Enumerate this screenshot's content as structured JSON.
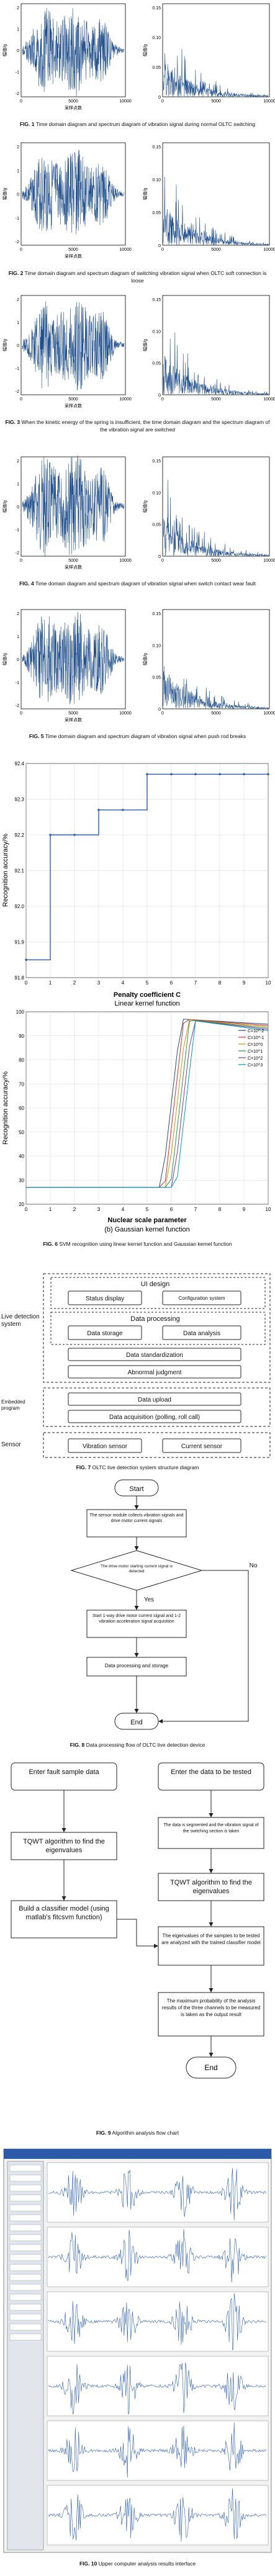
{
  "fig1": {
    "caption_label": "FIG. 1",
    "caption_text": "Time domain diagram and spectrum diagram of vibration signal during normal OLTC switching",
    "time_xlabel": "采样点数",
    "time_ylabel": "幅值/g",
    "freq_ylabel": "幅值/g",
    "time_xticks": [
      "0",
      "5000",
      "10000"
    ],
    "freq_xticks": [
      "0",
      "5000",
      "10000"
    ],
    "time_yticks": [
      "2",
      "1",
      "0",
      "-1",
      "-2"
    ],
    "freq_yticks": [
      "0.15",
      "0.10",
      "0.05",
      "0"
    ]
  },
  "fig2": {
    "caption_label": "FIG. 2",
    "caption_text": "Time domain diagram and spectrum diagram of switching vibration signal when OLTC soft connection is loose",
    "time_xlabel": "采样点数",
    "time_ylabel": "幅值/g",
    "freq_ylabel": "幅值/g",
    "time_xticks": [
      "0",
      "5000",
      "10000"
    ],
    "freq_xticks": [
      "0",
      "5000",
      "10000"
    ],
    "time_yticks": [
      "2",
      "1",
      "0",
      "-1",
      "-2"
    ],
    "freq_yticks": [
      "0.15",
      "0.10",
      "0.05",
      "0"
    ]
  },
  "fig3": {
    "caption_label": "FIG. 3",
    "caption_text": "When the kinetic energy of the spring is insufficient, the time domain diagram and the spectrum diagram of the vibration signal are switched",
    "time_xlabel": "采样点数",
    "time_ylabel": "幅值/g",
    "freq_ylabel": "幅值/g",
    "time_xticks": [
      "0",
      "5000",
      "10000"
    ],
    "freq_xticks": [
      "0",
      "5000",
      "10000"
    ],
    "time_yticks": [
      "2",
      "1",
      "0",
      "-1",
      "-2"
    ],
    "freq_yticks": [
      "0.15",
      "0.10",
      "0.05",
      "0"
    ]
  },
  "fig4": {
    "caption_label": "FIG. 4",
    "caption_text": "Time domain diagram and spectrum diagram of vibration signal when switch contact wear fault",
    "time_xlabel": "采样点数",
    "time_ylabel": "幅值/g",
    "freq_ylabel": "幅值/g",
    "time_xticks": [
      "0",
      "5000",
      "10000"
    ],
    "freq_xticks": [
      "0",
      "5000",
      "10000"
    ],
    "time_yticks": [
      "2",
      "1",
      "0",
      "-1",
      "-2"
    ],
    "freq_yticks": [
      "0.15",
      "0.10",
      "0.05",
      "0"
    ]
  },
  "fig5": {
    "caption_label": "FIG. 5",
    "caption_text": "Time domain diagram and spectrum diagram of vibration signal when push rod breaks",
    "time_xlabel": "采样点数",
    "time_ylabel": "幅值/g",
    "freq_ylabel": "幅值/g",
    "time_xticks": [
      "0",
      "5000",
      "10000"
    ],
    "freq_xticks": [
      "0",
      "5000",
      "10000"
    ],
    "time_yticks": [
      "2",
      "1",
      "0",
      "-1",
      "-2"
    ],
    "freq_yticks": [
      "0.15",
      "0.10",
      "0.05",
      "0"
    ]
  },
  "fig6": {
    "caption_label": "FIG. 6",
    "caption_text": "SVM recognition using linear kernel function and Gaussian kernel function",
    "a_xlabel": "Penalty coefficient C",
    "a_sublabel": "Linear kernel function",
    "a_ylabel": "Recognition accuracy/%",
    "b_xlabel": "Nuclear scale parameter",
    "b_sublabel": "(b) Gaussian kernel function",
    "b_ylabel": "Recognition accuracy/%"
  },
  "fig7": {
    "caption_label": "FIG. 7",
    "caption_text": "OLTC live detection system structure diagram",
    "ui_design": "UI design",
    "status_display": "Status display",
    "configuration_system": "Configuration system",
    "live_detection_system": "Live detection system",
    "data_processing": "Data processing",
    "data_storage": "Data storage",
    "data_analysis": "Data analysis",
    "data_standardization": "Data standardization",
    "abnormal_judgment": "Abnormal judgment",
    "embedded_program": "Embedded program",
    "data_upload": "Data upload",
    "data_acquisition": "Data acquisition (polling, roll call)",
    "sensor": "Sensor",
    "vibration_sensor": "Vibration sensor",
    "current_sensor": "Current sensor"
  },
  "fig8": {
    "caption_label": "FIG. 8",
    "caption_text": "Data processing flow of OLTC live detection device",
    "start": "Start",
    "step1": "The sensor module collects vibration signals and drive motor current signals",
    "decision": "The drive motor starting current signal is detected",
    "no": "No",
    "yes": "Yes",
    "step2": "Start 1-way drive motor current signal and 1-2 vibration acceleration signal acquisition",
    "step3": "Data processing and storage",
    "end": "End"
  },
  "fig9": {
    "caption_label": "FIG. 9",
    "caption_text": "Algorithm analysis flow chart",
    "left1": "Enter fault sample data",
    "left2": "TQWT algorithm to find the eigenvalues",
    "left3": "Build a classifier model (using matlab's fitcsvm function)",
    "right1": "Enter the data to be tested",
    "right2": "The data is segmented and the vibration signal of the switching section is taken",
    "right3": "TQWT algorithm to find the eigenvalues",
    "right4": "The eigenvalues of the samples to be tested are analyzed with the trained classifier model",
    "right5": "The maximum probability of the analysis results of the three channels to be measured is taken as the output result",
    "end": "End"
  },
  "fig10": {
    "caption_label": "FIG. 10",
    "caption_text": "Upper computer analysis results interface"
  },
  "colors": {
    "signal_blue": "#1f4e8c",
    "ui_blue": "#2a5db0",
    "grid": "#d8d8d8"
  }
}
